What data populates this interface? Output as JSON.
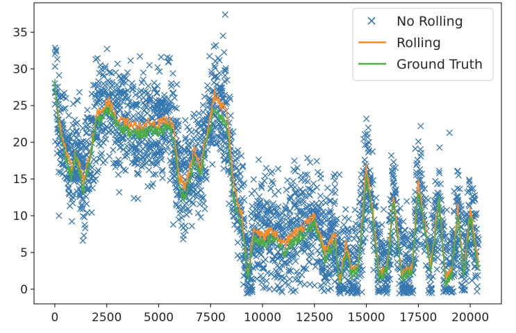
{
  "chart_data": {
    "type": "line",
    "title": "",
    "xlabel": "",
    "ylabel": "",
    "xlim": [
      -1000,
      21500
    ],
    "ylim": [
      -2,
      39
    ],
    "x_ticks": [
      0,
      2500,
      5000,
      7500,
      10000,
      12500,
      15000,
      17500,
      20000
    ],
    "y_ticks": [
      0,
      5,
      10,
      15,
      20,
      25,
      30,
      35
    ],
    "grid": false,
    "legend_position": "top-right",
    "colors": {
      "no_rolling": "#3778b0",
      "rolling": "#ff8c24",
      "ground_truth": "#4caf3f"
    },
    "series": [
      {
        "name": "No Rolling",
        "style": "scatter-x",
        "noise_amplitude": 3.6,
        "representative_points": [
          [
            120,
            31.3
          ],
          [
            200,
            10.0
          ],
          [
            450,
            26.7
          ],
          [
            1350,
            6.6
          ],
          [
            1400,
            7.3
          ],
          [
            2200,
            30.5
          ],
          [
            3100,
            13.2
          ],
          [
            3500,
            29.5
          ],
          [
            4000,
            12.3
          ],
          [
            4100,
            31.7
          ],
          [
            4300,
            26.8
          ],
          [
            5700,
            8.8
          ],
          [
            6200,
            7.3
          ],
          [
            6600,
            8.6
          ],
          [
            8200,
            37.4
          ],
          [
            8100,
            34.5
          ],
          [
            9000,
            4.5
          ],
          [
            10500,
            14.4
          ],
          [
            11500,
            16.3
          ],
          [
            12200,
            13.7
          ],
          [
            12800,
            15.1
          ],
          [
            13700,
            15.6
          ],
          [
            15000,
            23.2
          ],
          [
            16200,
            18.2
          ],
          [
            17500,
            20.1
          ],
          [
            19000,
            21.3
          ],
          [
            19400,
            16.1
          ],
          [
            20000,
            13.7
          ]
        ]
      },
      {
        "name": "Rolling",
        "style": "line",
        "values": [
          [
            0,
            28.0
          ],
          [
            200,
            23.0
          ],
          [
            500,
            19.0
          ],
          [
            800,
            16.5
          ],
          [
            1000,
            18.5
          ],
          [
            1200,
            17.0
          ],
          [
            1400,
            14.5
          ],
          [
            1700,
            18.5
          ],
          [
            2000,
            23.5
          ],
          [
            2300,
            24.5
          ],
          [
            2600,
            25.5
          ],
          [
            3000,
            23.0
          ],
          [
            3500,
            22.5
          ],
          [
            4000,
            22.0
          ],
          [
            4500,
            22.5
          ],
          [
            5000,
            22.5
          ],
          [
            5500,
            23.0
          ],
          [
            5700,
            22.0
          ],
          [
            6000,
            15.0
          ],
          [
            6300,
            14.0
          ],
          [
            6700,
            19.0
          ],
          [
            7000,
            16.5
          ],
          [
            7300,
            21.0
          ],
          [
            7700,
            26.5
          ],
          [
            8000,
            25.0
          ],
          [
            8300,
            24.0
          ],
          [
            8600,
            14.5
          ],
          [
            9000,
            10.0
          ],
          [
            9300,
            2.0
          ],
          [
            9600,
            8.5
          ],
          [
            10000,
            7.0
          ],
          [
            10500,
            8.0
          ],
          [
            11000,
            6.0
          ],
          [
            11500,
            7.5
          ],
          [
            12000,
            8.5
          ],
          [
            12500,
            10.0
          ],
          [
            13000,
            5.0
          ],
          [
            13500,
            7.5
          ],
          [
            13700,
            1.0
          ],
          [
            14000,
            6.0
          ],
          [
            14300,
            2.5
          ],
          [
            14600,
            3.0
          ],
          [
            15000,
            16.5
          ],
          [
            15300,
            11.0
          ],
          [
            15600,
            2.0
          ],
          [
            16000,
            3.0
          ],
          [
            16300,
            13.0
          ],
          [
            16700,
            2.0
          ],
          [
            17200,
            3.0
          ],
          [
            17500,
            14.5
          ],
          [
            17800,
            9.0
          ],
          [
            18100,
            3.0
          ],
          [
            18500,
            13.0
          ],
          [
            18800,
            1.5
          ],
          [
            19100,
            2.5
          ],
          [
            19400,
            11.0
          ],
          [
            19700,
            2.0
          ],
          [
            20000,
            11.0
          ],
          [
            20400,
            3.0
          ]
        ]
      },
      {
        "name": "Ground Truth",
        "style": "line",
        "values": [
          [
            0,
            28.0
          ],
          [
            200,
            22.0
          ],
          [
            500,
            18.0
          ],
          [
            800,
            15.5
          ],
          [
            1000,
            18.0
          ],
          [
            1200,
            16.0
          ],
          [
            1400,
            13.5
          ],
          [
            1700,
            18.0
          ],
          [
            2000,
            22.5
          ],
          [
            2300,
            23.5
          ],
          [
            2600,
            24.5
          ],
          [
            3000,
            22.5
          ],
          [
            3500,
            21.5
          ],
          [
            4000,
            21.0
          ],
          [
            4500,
            21.5
          ],
          [
            5000,
            21.5
          ],
          [
            5500,
            22.0
          ],
          [
            5700,
            21.0
          ],
          [
            6000,
            13.5
          ],
          [
            6300,
            12.5
          ],
          [
            6700,
            17.5
          ],
          [
            7000,
            15.5
          ],
          [
            7300,
            20.0
          ],
          [
            7700,
            24.5
          ],
          [
            8000,
            23.5
          ],
          [
            8300,
            22.0
          ],
          [
            8600,
            12.5
          ],
          [
            9000,
            8.5
          ],
          [
            9300,
            1.5
          ],
          [
            9600,
            7.0
          ],
          [
            10000,
            6.0
          ],
          [
            10500,
            7.0
          ],
          [
            11000,
            5.0
          ],
          [
            11500,
            6.5
          ],
          [
            12000,
            7.5
          ],
          [
            12500,
            9.0
          ],
          [
            13000,
            4.0
          ],
          [
            13500,
            6.5
          ],
          [
            13700,
            0.5
          ],
          [
            14000,
            5.0
          ],
          [
            14300,
            2.0
          ],
          [
            14600,
            2.5
          ],
          [
            15000,
            15.0
          ],
          [
            15300,
            10.0
          ],
          [
            15600,
            1.5
          ],
          [
            16000,
            2.5
          ],
          [
            16300,
            12.0
          ],
          [
            16700,
            1.5
          ],
          [
            17200,
            2.5
          ],
          [
            17500,
            13.5
          ],
          [
            17800,
            8.0
          ],
          [
            18100,
            2.5
          ],
          [
            18500,
            12.0
          ],
          [
            18800,
            1.0
          ],
          [
            19100,
            2.0
          ],
          [
            19400,
            10.0
          ],
          [
            19700,
            1.5
          ],
          [
            20000,
            10.0
          ],
          [
            20400,
            2.5
          ]
        ]
      }
    ]
  }
}
